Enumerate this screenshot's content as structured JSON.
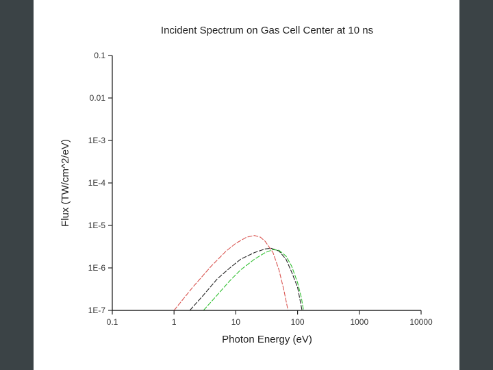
{
  "chart_data": {
    "type": "line",
    "title": "Incident Spectrum on Gas Cell Center at 10 ns",
    "xlabel": "Photon Energy (eV)",
    "ylabel": "Flux (TW/cm^2/eV)",
    "x_scale": "log",
    "y_scale": "log",
    "xlim": [
      0.1,
      10000
    ],
    "ylim": [
      1e-07,
      0.1
    ],
    "x_ticks": [
      {
        "value": 0.1,
        "label": "0.1"
      },
      {
        "value": 1,
        "label": "1"
      },
      {
        "value": 10,
        "label": "10"
      },
      {
        "value": 100,
        "label": "100"
      },
      {
        "value": 1000,
        "label": "1000"
      },
      {
        "value": 10000,
        "label": "10000"
      }
    ],
    "y_ticks": [
      {
        "value": 1e-07,
        "label": "1E-7"
      },
      {
        "value": 1e-06,
        "label": "1E-6"
      },
      {
        "value": 1e-05,
        "label": "1E-5"
      },
      {
        "value": 0.0001,
        "label": "1E-4"
      },
      {
        "value": 0.001,
        "label": "1E-3"
      },
      {
        "value": 0.01,
        "label": "0.01"
      },
      {
        "value": 0.1,
        "label": "0.1"
      }
    ],
    "grid": false,
    "legend": "none",
    "series": [
      {
        "color": "#d9534f",
        "style": "dashed",
        "points": [
          [
            1,
            1e-07
          ],
          [
            2,
            3.5e-07
          ],
          [
            4,
            1.1e-06
          ],
          [
            7,
            2.5e-06
          ],
          [
            10,
            3.8e-06
          ],
          [
            15,
            5.3e-06
          ],
          [
            20,
            5.8e-06
          ],
          [
            25,
            5.3e-06
          ],
          [
            30,
            4.2e-06
          ],
          [
            40,
            2.3e-06
          ],
          [
            50,
            9e-07
          ],
          [
            60,
            3e-07
          ],
          [
            70,
            1e-07
          ]
        ]
      },
      {
        "color": "#222222",
        "style": "dashed",
        "points": [
          [
            1.8,
            1e-07
          ],
          [
            3,
            2.3e-07
          ],
          [
            5,
            5.5e-07
          ],
          [
            8,
            1e-06
          ],
          [
            12,
            1.6e-06
          ],
          [
            20,
            2.3e-06
          ],
          [
            30,
            2.8e-06
          ],
          [
            37,
            2.9e-06
          ],
          [
            50,
            2.5e-06
          ],
          [
            65,
            1.6e-06
          ],
          [
            80,
            8e-07
          ],
          [
            100,
            3.5e-07
          ],
          [
            118,
            1e-07
          ]
        ]
      },
      {
        "color": "#33c033",
        "style": "dashed",
        "points": [
          [
            3,
            1e-07
          ],
          [
            5,
            2.3e-07
          ],
          [
            8,
            5e-07
          ],
          [
            12,
            9e-07
          ],
          [
            20,
            1.6e-06
          ],
          [
            30,
            2.3e-06
          ],
          [
            40,
            2.7e-06
          ],
          [
            50,
            2.6e-06
          ],
          [
            65,
            1.9e-06
          ],
          [
            80,
            1.1e-06
          ],
          [
            100,
            4.5e-07
          ],
          [
            115,
            2e-07
          ],
          [
            125,
            1e-07
          ]
        ]
      }
    ]
  }
}
